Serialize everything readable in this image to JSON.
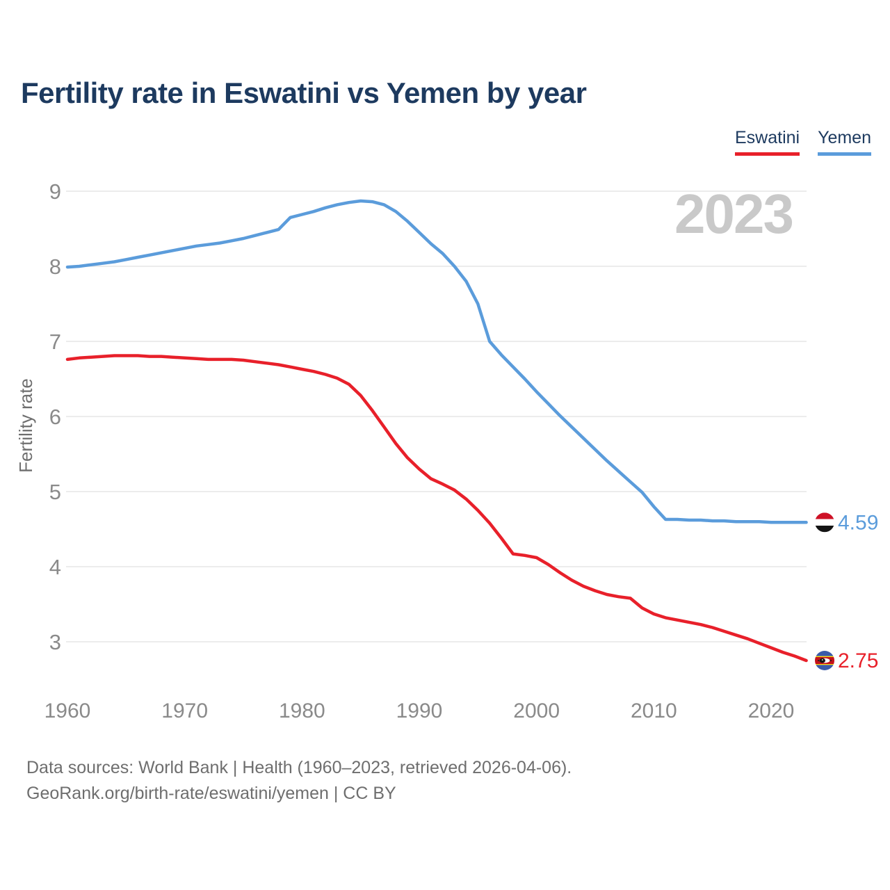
{
  "title": "Fertility rate in Eswatini vs Yemen by year",
  "watermark": "2023",
  "source": {
    "line1": "Data sources: World Bank | Health (1960–2023, retrieved 2026-04-06).",
    "line2": "GeoRank.org/birth-rate/eswatini/yemen | CC BY"
  },
  "colors": {
    "title_text": "#1d3a5f",
    "axis_text": "#8a8a8a",
    "grid": "#e5e5e5",
    "watermark": "#c9c9c9",
    "eswatini_red": "#e8202a",
    "yemen_blue": "#5b9cdb"
  },
  "flags": {
    "yemen": {
      "stripes": [
        "#ce1126",
        "#ffffff",
        "#141414"
      ]
    },
    "eswatini": {
      "blue": "#3a5ba9",
      "yellow": "#ffd900",
      "red": "#c4111b"
    }
  },
  "chart_data": {
    "type": "line",
    "title": "Fertility rate in Eswatini vs Yemen by year",
    "xlabel": "",
    "ylabel": "Fertility rate",
    "x_range": [
      1960,
      2023
    ],
    "x_ticks": [
      1960,
      1970,
      1980,
      1990,
      2000,
      2010,
      2020
    ],
    "y_ticks": [
      3,
      4,
      5,
      6,
      7,
      8,
      9
    ],
    "ylim": [
      3,
      9
    ],
    "grid": true,
    "legend_position": "top-right",
    "series": [
      {
        "name": "Eswatini",
        "color": "#e8202a",
        "end_value": 2.75,
        "end_label": "2.75",
        "flag": "eswatini",
        "values": [
          6.76,
          6.78,
          6.79,
          6.8,
          6.81,
          6.81,
          6.81,
          6.8,
          6.8,
          6.79,
          6.78,
          6.77,
          6.76,
          6.76,
          6.76,
          6.75,
          6.73,
          6.71,
          6.69,
          6.66,
          6.63,
          6.6,
          6.56,
          6.51,
          6.43,
          6.28,
          6.08,
          5.86,
          5.64,
          5.45,
          5.3,
          5.17,
          5.1,
          5.02,
          4.9,
          4.75,
          4.58,
          4.38,
          4.17,
          4.15,
          4.12,
          4.03,
          3.92,
          3.82,
          3.74,
          3.68,
          3.63,
          3.6,
          3.58,
          3.45,
          3.37,
          3.32,
          3.29,
          3.26,
          3.23,
          3.19,
          3.14,
          3.09,
          3.04,
          2.98,
          2.92,
          2.86,
          2.81,
          2.75
        ]
      },
      {
        "name": "Yemen",
        "color": "#5b9cdb",
        "end_value": 4.59,
        "end_label": "4.59",
        "flag": "yemen",
        "values": [
          7.99,
          8.0,
          8.02,
          8.04,
          8.06,
          8.09,
          8.12,
          8.15,
          8.18,
          8.21,
          8.24,
          8.27,
          8.29,
          8.31,
          8.34,
          8.37,
          8.41,
          8.45,
          8.49,
          8.65,
          8.69,
          8.73,
          8.78,
          8.82,
          8.85,
          8.87,
          8.86,
          8.82,
          8.73,
          8.6,
          8.45,
          8.3,
          8.17,
          8.0,
          7.8,
          7.5,
          7.0,
          6.82,
          6.66,
          6.5,
          6.33,
          6.17,
          6.01,
          5.86,
          5.71,
          5.56,
          5.41,
          5.27,
          5.13,
          4.99,
          4.8,
          4.63,
          4.63,
          4.62,
          4.62,
          4.61,
          4.61,
          4.6,
          4.6,
          4.6,
          4.59,
          4.59,
          4.59,
          4.59
        ]
      }
    ]
  }
}
